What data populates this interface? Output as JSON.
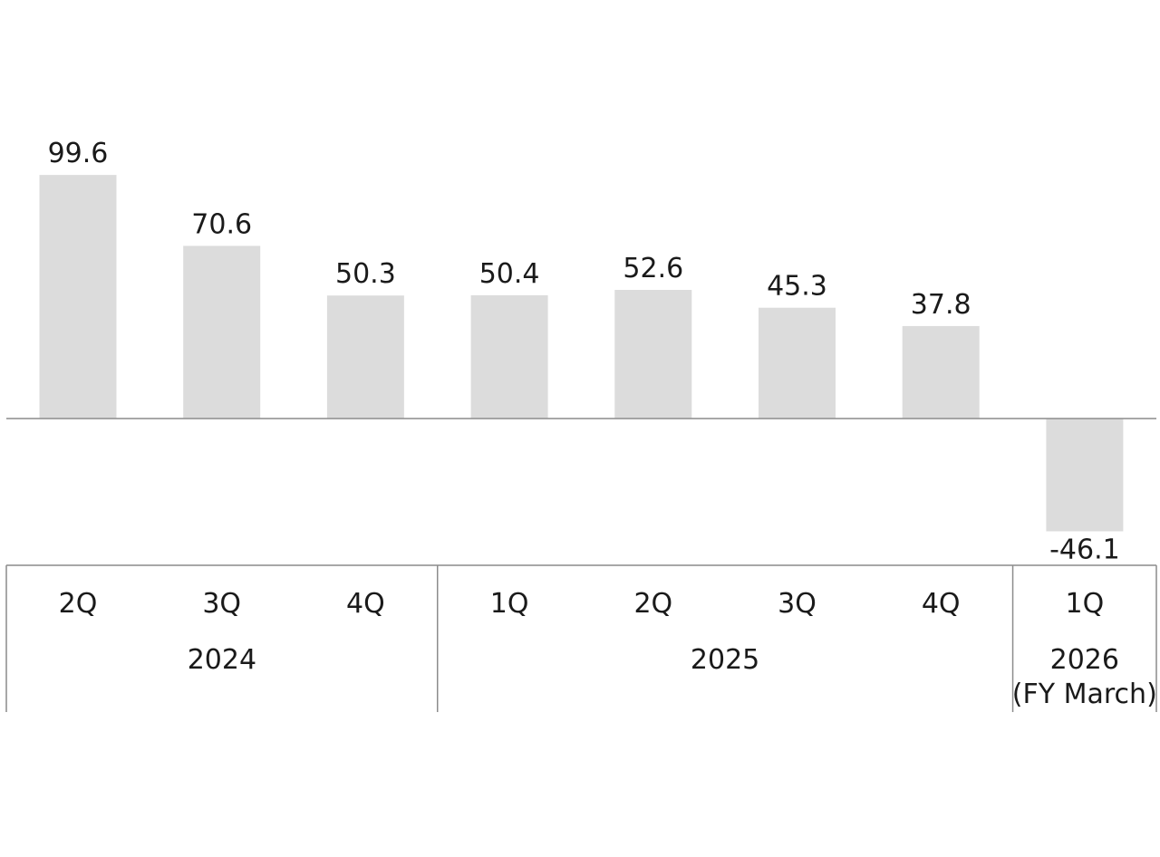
{
  "chart_data": {
    "type": "bar",
    "categories": [
      "2Q",
      "3Q",
      "4Q",
      "1Q",
      "2Q",
      "3Q",
      "4Q",
      "1Q"
    ],
    "values": [
      99.6,
      70.6,
      50.3,
      50.4,
      52.6,
      45.3,
      37.8,
      -46.1
    ],
    "value_labels": [
      "99.6",
      "70.6",
      "50.3",
      "50.4",
      "52.6",
      "45.3",
      "37.8",
      "-46.1"
    ],
    "groups": [
      {
        "label": "2024",
        "span": 3
      },
      {
        "label": "2025",
        "span": 4
      },
      {
        "label": "2026",
        "sublabel": "(FY March)",
        "span": 1
      }
    ],
    "title": "",
    "xlabel": "",
    "ylabel": "",
    "grid": false,
    "colors": {
      "bar": "#dcdcdc",
      "axis": "#8c8c8c",
      "text": "#1a1a1a"
    }
  }
}
